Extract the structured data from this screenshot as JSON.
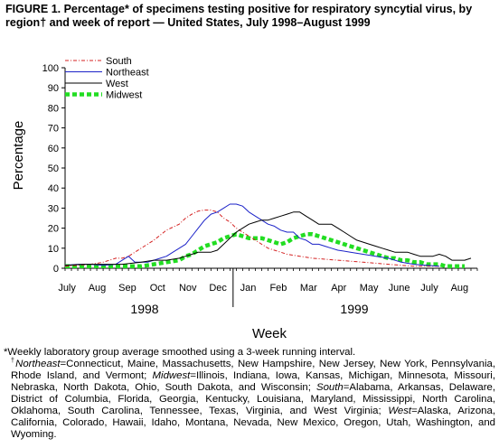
{
  "figure": {
    "title": "FIGURE 1. Percentage* of specimens testing positive for respiratory syncytial virus, by region† and week of report — United States, July 1998–August 1999"
  },
  "chart_data": {
    "type": "line",
    "title": "",
    "xlabel": "Week",
    "ylabel": "Percentage",
    "ylim": [
      0,
      100
    ],
    "yticks": [
      0,
      10,
      20,
      30,
      40,
      50,
      60,
      70,
      80,
      90,
      100
    ],
    "grid": false,
    "legend_position": "top-left",
    "months": [
      "July",
      "Aug",
      "Sep",
      "Oct",
      "Nov",
      "Dec",
      "Jan",
      "Feb",
      "Mar",
      "Apr",
      "May",
      "June",
      "July",
      "Aug"
    ],
    "years": [
      "1998",
      "1999"
    ],
    "x_unit": "week of report (week 1 = first week of July 1998)",
    "series": [
      {
        "name": "South",
        "color": "#d42020",
        "style": "dashdot",
        "points": [
          [
            1,
            1
          ],
          [
            3,
            1.5
          ],
          [
            5,
            2
          ],
          [
            7,
            3
          ],
          [
            9,
            5
          ],
          [
            10,
            5
          ],
          [
            11,
            6
          ],
          [
            13,
            10
          ],
          [
            15,
            14
          ],
          [
            17,
            19
          ],
          [
            19,
            22
          ],
          [
            20,
            25
          ],
          [
            21,
            27
          ],
          [
            22,
            28.5
          ],
          [
            23,
            29
          ],
          [
            24,
            29
          ],
          [
            25,
            28
          ],
          [
            26,
            25
          ],
          [
            27,
            23
          ],
          [
            28,
            20
          ],
          [
            29,
            18
          ],
          [
            30,
            16
          ],
          [
            31,
            14
          ],
          [
            32,
            12
          ],
          [
            33,
            10
          ],
          [
            34,
            9
          ],
          [
            35,
            8
          ],
          [
            36,
            7
          ],
          [
            38,
            6
          ],
          [
            40,
            5
          ],
          [
            42,
            4.5
          ],
          [
            44,
            4
          ],
          [
            46,
            3.5
          ],
          [
            48,
            3
          ],
          [
            50,
            2.5
          ],
          [
            52,
            2
          ],
          [
            54,
            1.5
          ],
          [
            56,
            1
          ],
          [
            58,
            1
          ],
          [
            60,
            1
          ]
        ]
      },
      {
        "name": "Northeast",
        "color": "#1b22c8",
        "style": "solid",
        "points": [
          [
            1,
            1.5
          ],
          [
            3,
            2
          ],
          [
            5,
            2
          ],
          [
            7,
            1.5
          ],
          [
            9,
            2
          ],
          [
            11,
            6
          ],
          [
            12,
            3
          ],
          [
            14,
            3
          ],
          [
            16,
            5
          ],
          [
            17,
            6
          ],
          [
            18,
            8
          ],
          [
            19,
            10
          ],
          [
            20,
            12
          ],
          [
            21,
            16
          ],
          [
            22,
            20
          ],
          [
            23,
            24
          ],
          [
            24,
            27
          ],
          [
            25,
            28
          ],
          [
            26,
            30
          ],
          [
            27,
            32
          ],
          [
            28,
            32
          ],
          [
            29,
            31
          ],
          [
            30,
            28
          ],
          [
            31,
            26
          ],
          [
            32,
            24
          ],
          [
            33,
            22
          ],
          [
            34,
            21
          ],
          [
            35,
            19
          ],
          [
            36,
            18
          ],
          [
            37,
            18
          ],
          [
            38,
            15
          ],
          [
            39,
            14
          ],
          [
            40,
            12
          ],
          [
            41,
            12
          ],
          [
            42,
            11
          ],
          [
            43,
            10
          ],
          [
            44,
            9
          ],
          [
            46,
            8
          ],
          [
            48,
            7
          ],
          [
            50,
            6
          ],
          [
            52,
            5
          ],
          [
            54,
            3
          ],
          [
            56,
            2
          ],
          [
            58,
            1.5
          ],
          [
            60,
            1
          ]
        ]
      },
      {
        "name": "West",
        "color": "#000000",
        "style": "solid",
        "points": [
          [
            1,
            1.5
          ],
          [
            4,
            2
          ],
          [
            7,
            2
          ],
          [
            10,
            2
          ],
          [
            13,
            3
          ],
          [
            15,
            4
          ],
          [
            17,
            4
          ],
          [
            19,
            5
          ],
          [
            20,
            6
          ],
          [
            21,
            7
          ],
          [
            22,
            8
          ],
          [
            24,
            8
          ],
          [
            25,
            9
          ],
          [
            26,
            12
          ],
          [
            27,
            15
          ],
          [
            28,
            18
          ],
          [
            29,
            20
          ],
          [
            30,
            22
          ],
          [
            31,
            23
          ],
          [
            32,
            24
          ],
          [
            33,
            24
          ],
          [
            34,
            25
          ],
          [
            35,
            26
          ],
          [
            36,
            27
          ],
          [
            37,
            28
          ],
          [
            38,
            28
          ],
          [
            39,
            26
          ],
          [
            40,
            24
          ],
          [
            41,
            22
          ],
          [
            42,
            22
          ],
          [
            43,
            22
          ],
          [
            44,
            20
          ],
          [
            45,
            18
          ],
          [
            46,
            16
          ],
          [
            47,
            14
          ],
          [
            48,
            13
          ],
          [
            49,
            12
          ],
          [
            50,
            11
          ],
          [
            51,
            10
          ],
          [
            52,
            9
          ],
          [
            53,
            8
          ],
          [
            55,
            8
          ],
          [
            56,
            7
          ],
          [
            57,
            6
          ],
          [
            58,
            6
          ],
          [
            59,
            6
          ],
          [
            60,
            7
          ],
          [
            61,
            6
          ],
          [
            62,
            4
          ],
          [
            63,
            4
          ],
          [
            64,
            4
          ],
          [
            65,
            5
          ]
        ]
      },
      {
        "name": "Midwest",
        "color": "#22dd22",
        "style": "dotted",
        "points": [
          [
            1,
            1
          ],
          [
            3,
            1
          ],
          [
            5,
            1
          ],
          [
            7,
            1
          ],
          [
            9,
            1
          ],
          [
            11,
            1
          ],
          [
            13,
            1
          ],
          [
            15,
            2
          ],
          [
            17,
            3
          ],
          [
            19,
            4
          ],
          [
            20,
            6
          ],
          [
            21,
            7
          ],
          [
            22,
            9
          ],
          [
            23,
            11
          ],
          [
            24,
            12
          ],
          [
            25,
            13
          ],
          [
            26,
            15
          ],
          [
            27,
            16
          ],
          [
            28,
            17
          ],
          [
            29,
            16
          ],
          [
            30,
            15
          ],
          [
            31,
            15
          ],
          [
            32,
            15
          ],
          [
            33,
            14
          ],
          [
            34,
            13
          ],
          [
            35,
            12
          ],
          [
            36,
            13
          ],
          [
            37,
            15
          ],
          [
            38,
            16
          ],
          [
            39,
            17
          ],
          [
            40,
            17
          ],
          [
            41,
            16
          ],
          [
            42,
            15
          ],
          [
            43,
            14
          ],
          [
            44,
            13
          ],
          [
            45,
            12
          ],
          [
            46,
            11
          ],
          [
            47,
            10
          ],
          [
            48,
            9
          ],
          [
            49,
            8
          ],
          [
            50,
            7
          ],
          [
            51,
            6
          ],
          [
            52,
            5
          ],
          [
            53,
            5
          ],
          [
            54,
            4
          ],
          [
            55,
            4
          ],
          [
            56,
            3
          ],
          [
            57,
            3
          ],
          [
            58,
            2
          ],
          [
            59,
            2
          ],
          [
            60,
            2
          ],
          [
            61,
            1
          ],
          [
            62,
            1
          ],
          [
            63,
            1
          ],
          [
            64,
            1
          ]
        ]
      }
    ]
  },
  "footnotes": {
    "asterisk_line": "*Weekly laboratory group average smoothed using a 3-week running interval.",
    "dagger_mark": "†",
    "northeast_label": "Northeast",
    "northeast_text": "=Connecticut, Maine, Massachusetts, New Hampshire, New Jersey, New York, Pennsylvania, Rhode Island, and Vermont; ",
    "midwest_label": "Midwest",
    "midwest_text": "=Illinois, Indiana, Iowa, Kansas, Michigan, Minnesota, Missouri, Nebraska, North Dakota, Ohio, South Dakota, and Wisconsin; ",
    "south_label": "South",
    "south_text": "=Alabama, Arkansas, Delaware, District of Columbia, Florida, Georgia, Kentucky, Louisiana, Maryland, Mississippi, North Carolina, Oklahoma, South Carolina, Tennessee, Texas, Virginia, and West Virginia; ",
    "west_label": "West",
    "west_text": "=Alaska, Arizona, California, Colorado, Hawaii, Idaho, Montana, Nevada, New Mexico, Oregon, Utah, Washington, and Wyoming."
  }
}
